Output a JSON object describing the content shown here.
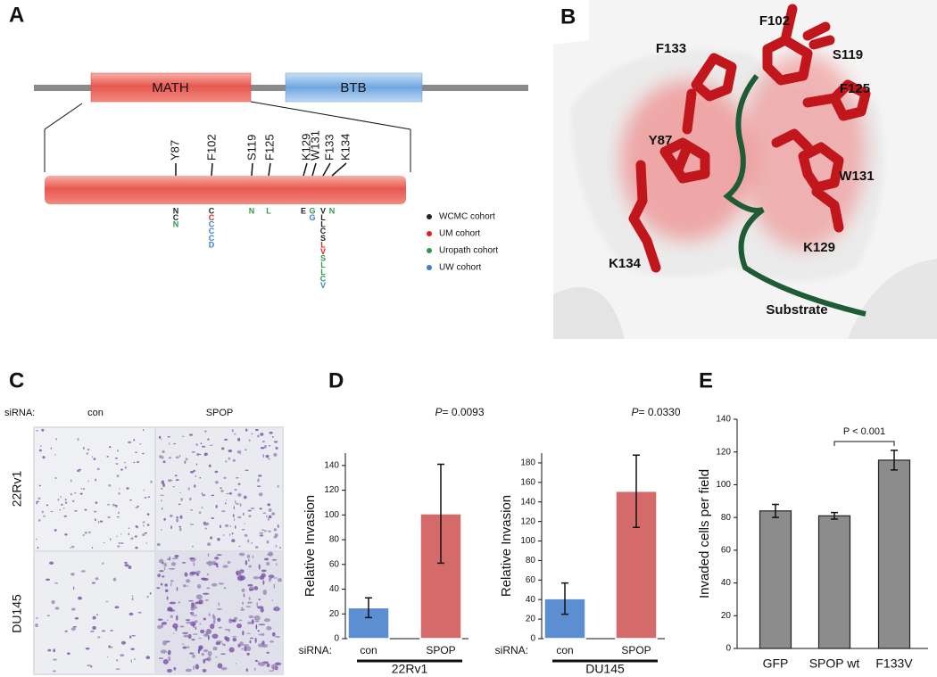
{
  "panel_labels": [
    "A",
    "B",
    "C",
    "D",
    "E"
  ],
  "panel_a": {
    "domains": [
      "MATH",
      "BTB"
    ],
    "residues": [
      "Y87",
      "F102",
      "S119",
      "F125",
      "K129",
      "W131",
      "F133",
      "K134"
    ],
    "mutations": [
      [
        {
          "aa": "N",
          "color": "#222222"
        },
        {
          "aa": "C",
          "color": "#222222"
        },
        {
          "aa": "N",
          "color": "#2e9a4a"
        }
      ],
      [
        {
          "aa": "C",
          "color": "#222222"
        },
        {
          "aa": "C",
          "color": "#e02020"
        },
        {
          "aa": "C",
          "color": "#3a7fd0"
        },
        {
          "aa": "C",
          "color": "#3a7fd0"
        },
        {
          "aa": "C",
          "color": "#3a7fd0"
        },
        {
          "aa": "D",
          "color": "#3a7fd0"
        }
      ],
      [
        {
          "aa": "N",
          "color": "#2e9a4a"
        }
      ],
      [
        {
          "aa": "L",
          "color": "#2e9a4a"
        }
      ],
      [
        {
          "aa": "E",
          "color": "#222222"
        }
      ],
      [
        {
          "aa": "G",
          "color": "#2e9a4a"
        },
        {
          "aa": "G",
          "color": "#3a7fd0"
        }
      ],
      [
        {
          "aa": "V",
          "color": "#222222"
        },
        {
          "aa": "L",
          "color": "#222222"
        },
        {
          "aa": "L",
          "color": "#222222"
        },
        {
          "aa": "C",
          "color": "#222222"
        },
        {
          "aa": "S",
          "color": "#222222"
        },
        {
          "aa": "L",
          "color": "#e02020"
        },
        {
          "aa": "V",
          "color": "#e02020"
        },
        {
          "aa": "S",
          "color": "#2e9a4a"
        },
        {
          "aa": "L",
          "color": "#2e9a4a"
        },
        {
          "aa": "L",
          "color": "#2e9a4a"
        },
        {
          "aa": "C",
          "color": "#2e9a4a"
        },
        {
          "aa": "V",
          "color": "#3a7fd0"
        }
      ],
      [
        {
          "aa": "N",
          "color": "#2e9a4a"
        }
      ]
    ],
    "cohorts": [
      {
        "name": "WCMC cohort",
        "color": "#222222"
      },
      {
        "name": "UM cohort",
        "color": "#e02020"
      },
      {
        "name": "Uropath cohort",
        "color": "#2e9a4a"
      },
      {
        "name": "UW cohort",
        "color": "#3a7fd0"
      }
    ]
  },
  "panel_b": {
    "labels": [
      "F102",
      "F133",
      "S119",
      "F125",
      "Y87",
      "W131",
      "K129",
      "K134",
      "Substrate"
    ]
  },
  "panel_c": {
    "sirna_label": "siRNA:",
    "columns": [
      "con",
      "SPOP"
    ],
    "rows": [
      "22Rv1",
      "DU145"
    ]
  },
  "chart_data": [
    {
      "type": "bar",
      "ylabel": "Relative Invasion",
      "xlabel": "siRNA:",
      "group": "22Rv1",
      "p_symbol": "P",
      "p_text": "= 0.0093",
      "categories": [
        "con",
        "SPOP"
      ],
      "values": [
        25,
        101
      ],
      "errors": [
        8,
        40
      ],
      "colors": [
        "#5b8fd1",
        "#d46a6a"
      ],
      "ylim": [
        0,
        150
      ],
      "yticks": [
        0,
        20,
        40,
        60,
        80,
        100,
        120,
        140
      ]
    },
    {
      "type": "bar",
      "ylabel": "Relative Invasion",
      "xlabel": "siRNA:",
      "group": "DU145",
      "p_symbol": "P",
      "p_text": "= 0.0330",
      "categories": [
        "con",
        "SPOP"
      ],
      "values": [
        41,
        151
      ],
      "errors": [
        16,
        37
      ],
      "colors": [
        "#5b8fd1",
        "#d46a6a"
      ],
      "ylim": [
        0,
        190
      ],
      "yticks": [
        0,
        20,
        40,
        60,
        80,
        100,
        120,
        140,
        160,
        180
      ]
    },
    {
      "type": "bar",
      "ylabel": "Invaded cells per field",
      "annotation": "P < 0.001",
      "categories": [
        "GFP",
        "SPOP wt",
        "F133V"
      ],
      "values": [
        84,
        81,
        115
      ],
      "errors": [
        4,
        2,
        6
      ],
      "colors": [
        "#8c8c8c",
        "#8c8c8c",
        "#8c8c8c"
      ],
      "ylim": [
        0,
        140
      ],
      "yticks": [
        0,
        20,
        40,
        60,
        80,
        100,
        120,
        140
      ]
    }
  ]
}
